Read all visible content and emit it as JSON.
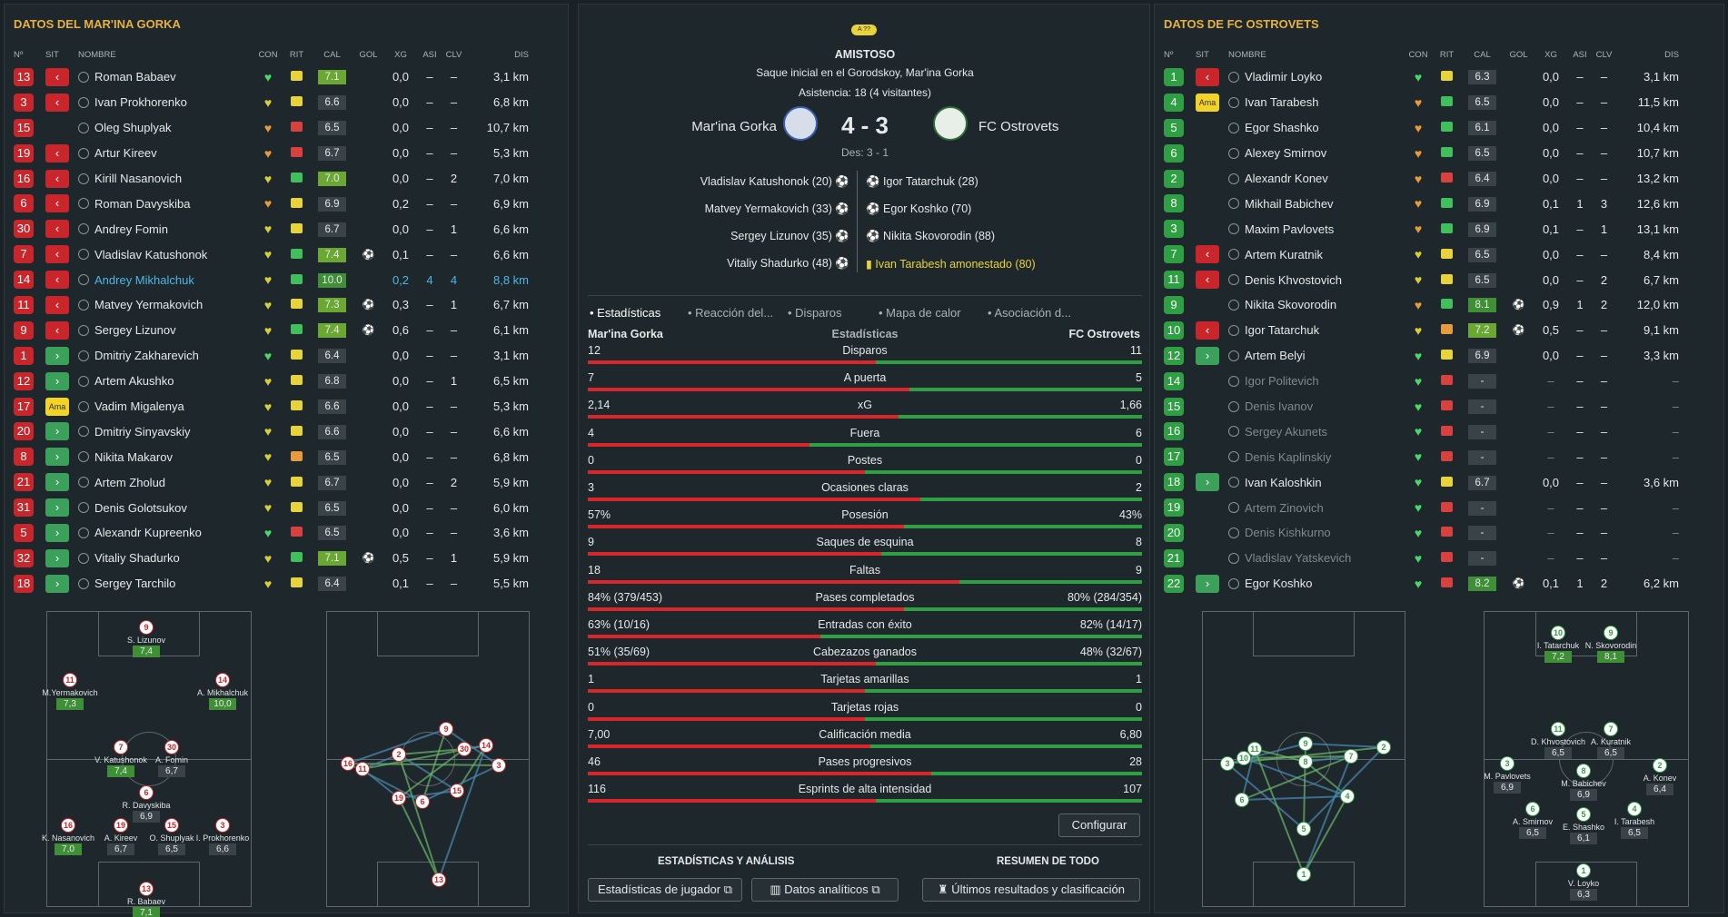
{
  "left": {
    "title": "DATOS DEL MAR'INA GORKA",
    "headers": [
      "Nº",
      "SIT",
      "NOMBRE",
      "CON",
      "RIT",
      "CAL",
      "GOL",
      "XG",
      "ASI",
      "CLV",
      "DIS"
    ],
    "players": [
      {
        "no": "13",
        "sit": "off",
        "name": "Roman Babaev",
        "con": "g",
        "rit": "y",
        "cal": "7.1",
        "calc": "lg",
        "gol": "",
        "xg": "0,0",
        "asi": "–",
        "clv": "–",
        "dis": "3,1 km"
      },
      {
        "no": "3",
        "sit": "off",
        "name": "Ivan Prokhorenko",
        "con": "y",
        "rit": "y",
        "cal": "6.6",
        "calc": "",
        "gol": "",
        "xg": "0,0",
        "asi": "–",
        "clv": "–",
        "dis": "6,8 km"
      },
      {
        "no": "15",
        "sit": "",
        "name": "Oleg Shuplyak",
        "con": "o",
        "rit": "r",
        "cal": "6.5",
        "calc": "",
        "gol": "",
        "xg": "0,0",
        "asi": "–",
        "clv": "–",
        "dis": "10,7 km"
      },
      {
        "no": "19",
        "sit": "off",
        "name": "Artur Kireev",
        "con": "o",
        "rit": "r",
        "cal": "6.7",
        "calc": "",
        "gol": "",
        "xg": "0,0",
        "asi": "–",
        "clv": "–",
        "dis": "5,3 km"
      },
      {
        "no": "16",
        "sit": "off",
        "name": "Kirill Nasanovich",
        "con": "y",
        "rit": "g",
        "cal": "7.0",
        "calc": "lg",
        "gol": "",
        "xg": "0,0",
        "asi": "–",
        "clv": "2",
        "dis": "7,0 km"
      },
      {
        "no": "6",
        "sit": "off",
        "name": "Roman Davyskiba",
        "con": "o",
        "rit": "y",
        "cal": "6.9",
        "calc": "",
        "gol": "",
        "xg": "0,2",
        "asi": "–",
        "clv": "–",
        "dis": "6,9 km"
      },
      {
        "no": "30",
        "sit": "off",
        "name": "Andrey Fomin",
        "con": "y",
        "rit": "y",
        "cal": "6.7",
        "calc": "",
        "gol": "",
        "xg": "0,0",
        "asi": "–",
        "clv": "1",
        "dis": "6,6 km"
      },
      {
        "no": "7",
        "sit": "off",
        "name": "Vladislav Katushonok",
        "con": "y",
        "rit": "g",
        "cal": "7.4",
        "calc": "lg",
        "gol": "⚽",
        "xg": "0,1",
        "asi": "–",
        "clv": "–",
        "dis": "6,6 km"
      },
      {
        "no": "14",
        "sit": "off",
        "name": "Andrey Mikhalchuk",
        "con": "y",
        "rit": "g",
        "cal": "10.0",
        "calc": "g",
        "gol": "",
        "xg": "0,2",
        "asi": "4",
        "clv": "4",
        "dis": "8,8 km",
        "hl": true
      },
      {
        "no": "11",
        "sit": "off",
        "name": "Matvey Yermakovich",
        "con": "y",
        "rit": "y",
        "cal": "7.3",
        "calc": "lg",
        "gol": "⚽",
        "xg": "0,3",
        "asi": "–",
        "clv": "1",
        "dis": "6,7 km"
      },
      {
        "no": "9",
        "sit": "off",
        "name": "Sergey Lizunov",
        "con": "y",
        "rit": "g",
        "cal": "7.4",
        "calc": "lg",
        "gol": "⚽",
        "xg": "0,6",
        "asi": "–",
        "clv": "–",
        "dis": "6,1 km"
      },
      {
        "no": "1",
        "sit": "on",
        "name": "Dmitriy Zakharevich",
        "con": "g",
        "rit": "y",
        "cal": "6.4",
        "calc": "",
        "gol": "",
        "xg": "0,0",
        "asi": "–",
        "clv": "–",
        "dis": "3,1 km"
      },
      {
        "no": "12",
        "sit": "on",
        "name": "Artem Akushko",
        "con": "y",
        "rit": "y",
        "cal": "6.8",
        "calc": "",
        "gol": "",
        "xg": "0,0",
        "asi": "–",
        "clv": "1",
        "dis": "6,5 km"
      },
      {
        "no": "17",
        "sit": "ama",
        "name": "Vadim Migalenya",
        "con": "y",
        "rit": "y",
        "cal": "6.6",
        "calc": "",
        "gol": "",
        "xg": "0,0",
        "asi": "–",
        "clv": "–",
        "dis": "5,3 km"
      },
      {
        "no": "20",
        "sit": "on",
        "name": "Dmitriy Sinyavskiy",
        "con": "y",
        "rit": "y",
        "cal": "6.6",
        "calc": "",
        "gol": "",
        "xg": "0,0",
        "asi": "–",
        "clv": "–",
        "dis": "6,6 km"
      },
      {
        "no": "8",
        "sit": "on",
        "name": "Nikita Makarov",
        "con": "y",
        "rit": "o",
        "cal": "6.5",
        "calc": "",
        "gol": "",
        "xg": "0,0",
        "asi": "–",
        "clv": "–",
        "dis": "6,8 km"
      },
      {
        "no": "21",
        "sit": "on",
        "name": "Artem Zholud",
        "con": "y",
        "rit": "y",
        "cal": "6.7",
        "calc": "",
        "gol": "",
        "xg": "0,0",
        "asi": "–",
        "clv": "2",
        "dis": "5,9 km"
      },
      {
        "no": "31",
        "sit": "on",
        "name": "Denis Golotsukov",
        "con": "y",
        "rit": "y",
        "cal": "6.5",
        "calc": "",
        "gol": "",
        "xg": "0,0",
        "asi": "–",
        "clv": "–",
        "dis": "6,0 km"
      },
      {
        "no": "5",
        "sit": "on",
        "name": "Alexandr Kupreenko",
        "con": "g",
        "rit": "r",
        "cal": "6.5",
        "calc": "",
        "gol": "",
        "xg": "0,0",
        "asi": "–",
        "clv": "–",
        "dis": "3,6 km"
      },
      {
        "no": "32",
        "sit": "on",
        "name": "Vitaliy Shadurko",
        "con": "y",
        "rit": "g",
        "cal": "7.1",
        "calc": "lg",
        "gol": "⚽",
        "xg": "0,5",
        "asi": "–",
        "clv": "1",
        "dis": "5,9 km"
      },
      {
        "no": "18",
        "sit": "on",
        "name": "Sergey Tarchilo",
        "con": "y",
        "rit": "y",
        "cal": "6.4",
        "calc": "",
        "gol": "",
        "xg": "0,1",
        "asi": "–",
        "clv": "–",
        "dis": "5,5 km"
      }
    ],
    "formation": [
      {
        "no": "9",
        "name": "S. Lizunov",
        "rating": "7,4",
        "g": true
      },
      {
        "no": "11",
        "name": "M.Yermakovich",
        "rating": "7,3",
        "g": true
      },
      {
        "no": "14",
        "name": "A. Mikhalchuk",
        "rating": "10,0",
        "g": true
      },
      {
        "no": "7",
        "name": "V. Katushonok",
        "rating": "7,4",
        "g": true
      },
      {
        "no": "30",
        "name": "A. Fomin",
        "rating": "6,7",
        "g": false
      },
      {
        "no": "6",
        "name": "R. Davyskiba",
        "rating": "6,9",
        "g": false
      },
      {
        "no": "16",
        "name": "K. Nasanovich",
        "rating": "7,0",
        "g": true
      },
      {
        "no": "19",
        "name": "A. Kireev",
        "rating": "6,7",
        "g": false
      },
      {
        "no": "15",
        "name": "O. Shuplyak",
        "rating": "6,5",
        "g": false
      },
      {
        "no": "3",
        "name": "I. Prokhorenko",
        "rating": "6,6",
        "g": false
      },
      {
        "no": "13",
        "name": "R. Babaev",
        "rating": "7,1",
        "g": true
      }
    ],
    "passmap": [
      "16",
      "11",
      "2",
      "9",
      "30",
      "14",
      "3",
      "15",
      "19",
      "6",
      "13"
    ]
  },
  "right": {
    "title": "DATOS DE FC OSTROVETS",
    "headers": [
      "Nº",
      "SIT",
      "NOMBRE",
      "CON",
      "RIT",
      "CAL",
      "GOL",
      "XG",
      "ASI",
      "CLV",
      "DIS"
    ],
    "players": [
      {
        "no": "1",
        "sit": "off",
        "name": "Vladimir Loyko",
        "con": "g",
        "rit": "y",
        "cal": "6.3",
        "calc": "",
        "gol": "",
        "xg": "0,0",
        "asi": "–",
        "clv": "–",
        "dis": "3,1 km"
      },
      {
        "no": "4",
        "sit": "ama",
        "name": "Ivan Tarabesh",
        "con": "o",
        "rit": "g",
        "cal": "6.5",
        "calc": "",
        "gol": "",
        "xg": "0,0",
        "asi": "–",
        "clv": "–",
        "dis": "11,5 km"
      },
      {
        "no": "5",
        "sit": "",
        "name": "Egor Shashko",
        "con": "o",
        "rit": "g",
        "cal": "6.1",
        "calc": "",
        "gol": "",
        "xg": "0,0",
        "asi": "–",
        "clv": "–",
        "dis": "10,4 km"
      },
      {
        "no": "6",
        "sit": "",
        "name": "Alexey Smirnov",
        "con": "o",
        "rit": "g",
        "cal": "6.5",
        "calc": "",
        "gol": "",
        "xg": "0,0",
        "asi": "–",
        "clv": "–",
        "dis": "10,7 km"
      },
      {
        "no": "2",
        "sit": "",
        "name": "Alexandr Konev",
        "con": "o",
        "rit": "r",
        "cal": "6.4",
        "calc": "",
        "gol": "",
        "xg": "0,0",
        "asi": "–",
        "clv": "–",
        "dis": "13,2 km"
      },
      {
        "no": "8",
        "sit": "",
        "name": "Mikhail Babichev",
        "con": "o",
        "rit": "g",
        "cal": "6.9",
        "calc": "",
        "gol": "",
        "xg": "0,1",
        "asi": "1",
        "clv": "3",
        "dis": "12,6 km"
      },
      {
        "no": "3",
        "sit": "",
        "name": "Maxim Pavlovets",
        "con": "o",
        "rit": "g",
        "cal": "6.9",
        "calc": "",
        "gol": "",
        "xg": "0,1",
        "asi": "–",
        "clv": "1",
        "dis": "13,1 km"
      },
      {
        "no": "7",
        "sit": "off",
        "name": "Artem Kuratnik",
        "con": "y",
        "rit": "y",
        "cal": "6.5",
        "calc": "",
        "gol": "",
        "xg": "0,0",
        "asi": "–",
        "clv": "–",
        "dis": "8,4 km"
      },
      {
        "no": "11",
        "sit": "off",
        "name": "Denis Khvostovich",
        "con": "y",
        "rit": "y",
        "cal": "6.5",
        "calc": "",
        "gol": "",
        "xg": "0,0",
        "asi": "–",
        "clv": "2",
        "dis": "6,7 km"
      },
      {
        "no": "9",
        "sit": "",
        "name": "Nikita Skovorodin",
        "con": "o",
        "rit": "g",
        "cal": "8.1",
        "calc": "g",
        "gol": "⚽",
        "xg": "0,9",
        "asi": "1",
        "clv": "2",
        "dis": "12,0 km"
      },
      {
        "no": "10",
        "sit": "off",
        "name": "Igor Tatarchuk",
        "con": "y",
        "rit": "o",
        "cal": "7.2",
        "calc": "lg",
        "gol": "⚽",
        "xg": "0,5",
        "asi": "–",
        "clv": "–",
        "dis": "9,1 km"
      },
      {
        "no": "12",
        "sit": "on",
        "name": "Artem Belyi",
        "con": "g",
        "rit": "y",
        "cal": "6.9",
        "calc": "",
        "gol": "",
        "xg": "0,0",
        "asi": "–",
        "clv": "–",
        "dis": "3,3 km"
      },
      {
        "no": "14",
        "sit": "",
        "name": "Igor Politevich",
        "con": "g",
        "rit": "r",
        "cal": "-",
        "calc": "",
        "gol": "",
        "xg": "–",
        "asi": "–",
        "clv": "–",
        "dis": "–",
        "dim": true
      },
      {
        "no": "15",
        "sit": "",
        "name": "Denis Ivanov",
        "con": "g",
        "rit": "r",
        "cal": "-",
        "calc": "",
        "gol": "",
        "xg": "–",
        "asi": "–",
        "clv": "–",
        "dis": "–",
        "dim": true
      },
      {
        "no": "16",
        "sit": "",
        "name": "Sergey Akunets",
        "con": "g",
        "rit": "r",
        "cal": "-",
        "calc": "",
        "gol": "",
        "xg": "–",
        "asi": "–",
        "clv": "–",
        "dis": "–",
        "dim": true
      },
      {
        "no": "17",
        "sit": "",
        "name": "Denis Kaplinskiy",
        "con": "g",
        "rit": "r",
        "cal": "-",
        "calc": "",
        "gol": "",
        "xg": "–",
        "asi": "–",
        "clv": "–",
        "dis": "–",
        "dim": true
      },
      {
        "no": "18",
        "sit": "on",
        "name": "Ivan Kaloshkin",
        "con": "g",
        "rit": "y",
        "cal": "6.7",
        "calc": "",
        "gol": "",
        "xg": "0,0",
        "asi": "–",
        "clv": "–",
        "dis": "3,6 km"
      },
      {
        "no": "19",
        "sit": "",
        "name": "Artem Zinovich",
        "con": "g",
        "rit": "r",
        "cal": "-",
        "calc": "",
        "gol": "",
        "xg": "–",
        "asi": "–",
        "clv": "–",
        "dis": "–",
        "dim": true
      },
      {
        "no": "20",
        "sit": "",
        "name": "Denis Kishkurno",
        "con": "g",
        "rit": "r",
        "cal": "-",
        "calc": "",
        "gol": "",
        "xg": "–",
        "asi": "–",
        "clv": "–",
        "dis": "–",
        "dim": true
      },
      {
        "no": "21",
        "sit": "",
        "name": "Vladislav Yatskevich",
        "con": "g",
        "rit": "r",
        "cal": "-",
        "calc": "",
        "gol": "",
        "xg": "–",
        "asi": "–",
        "clv": "–",
        "dis": "–",
        "dim": true
      },
      {
        "no": "22",
        "sit": "on",
        "name": "Egor Koshko",
        "con": "g",
        "rit": "r",
        "cal": "8.2",
        "calc": "g",
        "gol": "⚽",
        "xg": "0,1",
        "asi": "1",
        "clv": "2",
        "dis": "6,2 km"
      }
    ],
    "formation": [
      {
        "no": "10",
        "name": "I. Tatarchuk",
        "rating": "7,2",
        "g": true
      },
      {
        "no": "9",
        "name": "N. Skovorodin",
        "rating": "8,1",
        "g": true
      },
      {
        "no": "11",
        "name": "D. Khvostovich",
        "rating": "6,5",
        "g": false
      },
      {
        "no": "7",
        "name": "A. Kuratnik",
        "rating": "6,5",
        "g": false
      },
      {
        "no": "3",
        "name": "M. Pavlovets",
        "rating": "6,9",
        "g": false
      },
      {
        "no": "8",
        "name": "M. Babichev",
        "rating": "6,9",
        "g": false
      },
      {
        "no": "2",
        "name": "A. Konev",
        "rating": "6,4",
        "g": false
      },
      {
        "no": "6",
        "name": "A. Smirnov",
        "rating": "6,5",
        "g": false
      },
      {
        "no": "5",
        "name": "E. Shashko",
        "rating": "6,1",
        "g": false
      },
      {
        "no": "4",
        "name": "I. Tarabesh",
        "rating": "6,5",
        "g": false
      },
      {
        "no": "1",
        "name": "V. Loyko",
        "rating": "6,3",
        "g": false
      }
    ],
    "passmap": [
      "3",
      "10",
      "11",
      "9",
      "8",
      "7",
      "2",
      "6",
      "4",
      "5",
      "1"
    ]
  },
  "match": {
    "badge": "A ??",
    "type": "AMISTOSO",
    "kickoff": "Saque inicial en el Gorodskoy, Mar'ina Gorka",
    "attendance": "Asistencia: 18 (4 visitantes)",
    "home": "Mar'ina Gorka",
    "away": "FC Ostrovets",
    "score": "4 - 3",
    "extra": "Des: 3 - 1",
    "home_events": [
      "Vladislav Katushonok (20)",
      "Matvey Yermakovich (33)",
      "Sergey Lizunov (35)",
      "Vitaliy Shadurko (48)"
    ],
    "away_events": [
      "Igor Tatarchuk (28)",
      "Egor Koshko (70)",
      "Nikita Skovorodin (88)",
      "Ivan Tarabesh amonestado (80)"
    ]
  },
  "stats_tabs": [
    "Estadísticas",
    "Reacción del...",
    "Disparos",
    "Mapa de calor",
    "Asociación d..."
  ],
  "stats_header": {
    "home": "Mar'ina Gorka",
    "mid": "Estadísticas",
    "away": "FC Ostrovets"
  },
  "stats": [
    {
      "label": "Disparos",
      "home": "12",
      "away": "11",
      "share": 0.52
    },
    {
      "label": "A puerta",
      "home": "7",
      "away": "5",
      "share": 0.58
    },
    {
      "label": "xG",
      "home": "2,14",
      "away": "1,66",
      "share": 0.56
    },
    {
      "label": "Fuera",
      "home": "4",
      "away": "6",
      "share": 0.4
    },
    {
      "label": "Postes",
      "home": "0",
      "away": "0",
      "share": 0.5
    },
    {
      "label": "Ocasiones claras",
      "home": "3",
      "away": "2",
      "share": 0.6
    },
    {
      "label": "Posesión",
      "home": "57%",
      "away": "43%",
      "share": 0.57
    },
    {
      "label": "Saques de esquina",
      "home": "9",
      "away": "8",
      "share": 0.53
    },
    {
      "label": "Faltas",
      "home": "18",
      "away": "9",
      "share": 0.67
    },
    {
      "label": "Pases completados",
      "home": "84% (379/453)",
      "away": "80% (284/354)",
      "share": 0.57
    },
    {
      "label": "Entradas con éxito",
      "home": "63% (10/16)",
      "away": "82% (14/17)",
      "share": 0.42
    },
    {
      "label": "Cabezazos ganados",
      "home": "51% (35/69)",
      "away": "48% (32/67)",
      "share": 0.52
    },
    {
      "label": "Tarjetas amarillas",
      "home": "1",
      "away": "1",
      "share": 0.5
    },
    {
      "label": "Tarjetas rojas",
      "home": "0",
      "away": "0",
      "share": 0.5
    },
    {
      "label": "Calificación media",
      "home": "7,00",
      "away": "6,80",
      "share": 0.51
    },
    {
      "label": "Pases progresivos",
      "home": "46",
      "away": "28",
      "share": 0.62
    },
    {
      "label": "Esprints de alta intensidad",
      "home": "116",
      "away": "107",
      "share": 0.52
    }
  ],
  "configure": "Configurar",
  "section_a": "ESTADÍSTICAS Y ANÁLISIS",
  "section_b": "RESUMEN DE TODO",
  "buttons": [
    "Estadísticas de jugador",
    "Datos analíticos",
    "Últimos resultados y clasificación"
  ],
  "colors": {
    "home": "#c8262a",
    "away": "#2ea043",
    "accent": "#e8b13f"
  }
}
